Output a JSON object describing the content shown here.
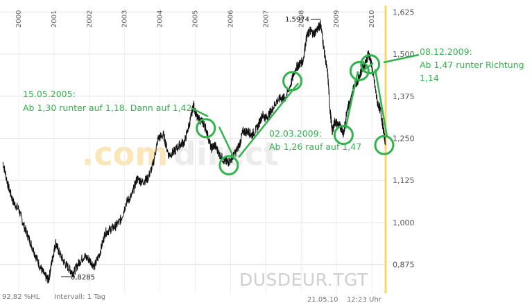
{
  "chart_data": {
    "type": "line",
    "ticker": "DUSDEUR.TGT",
    "watermark": [
      ".com",
      "direct"
    ],
    "ylim": [
      0.79,
      1.64
    ],
    "y_ticks": [
      {
        "value": 0.875,
        "label": "0,875"
      },
      {
        "value": 1.0,
        "label": "1,000"
      },
      {
        "value": 1.125,
        "label": "1,125"
      },
      {
        "value": 1.25,
        "label": "1,250"
      },
      {
        "value": 1.375,
        "label": "1,375"
      },
      {
        "value": 1.5,
        "label": "1,500"
      },
      {
        "value": 1.625,
        "label": "1,625"
      }
    ],
    "xlim": [
      1999.55,
      2010.39
    ],
    "x_ticks": [
      {
        "value": 2000,
        "label": "2000"
      },
      {
        "value": 2001,
        "label": "2001"
      },
      {
        "value": 2002,
        "label": "2002"
      },
      {
        "value": 2003,
        "label": "2003"
      },
      {
        "value": 2004,
        "label": "2004"
      },
      {
        "value": 2005,
        "label": "2005"
      },
      {
        "value": 2006,
        "label": "2006"
      },
      {
        "value": 2007,
        "label": "2007"
      },
      {
        "value": 2008,
        "label": "2008"
      },
      {
        "value": 2009,
        "label": "2009"
      },
      {
        "value": 2010,
        "label": "2010"
      }
    ],
    "series": [
      {
        "color": "#111111",
        "points": [
          [
            1999.55,
            1.18
          ],
          [
            1999.7,
            1.11
          ],
          [
            1999.85,
            1.06
          ],
          [
            2000.0,
            1.04
          ],
          [
            2000.15,
            0.99
          ],
          [
            2000.3,
            0.95
          ],
          [
            2000.45,
            0.91
          ],
          [
            2000.6,
            0.87
          ],
          [
            2000.75,
            0.84
          ],
          [
            2000.85,
            0.83
          ],
          [
            2000.95,
            0.89
          ],
          [
            2001.05,
            0.94
          ],
          [
            2001.15,
            0.91
          ],
          [
            2001.3,
            0.88
          ],
          [
            2001.45,
            0.86
          ],
          [
            2001.55,
            0.85
          ],
          [
            2001.7,
            0.88
          ],
          [
            2001.85,
            0.9
          ],
          [
            2002.0,
            0.89
          ],
          [
            2002.15,
            0.87
          ],
          [
            2002.3,
            0.91
          ],
          [
            2002.45,
            0.97
          ],
          [
            2002.6,
            0.98
          ],
          [
            2002.75,
            0.99
          ],
          [
            2002.9,
            1.01
          ],
          [
            2003.05,
            1.06
          ],
          [
            2003.2,
            1.08
          ],
          [
            2003.35,
            1.13
          ],
          [
            2003.5,
            1.12
          ],
          [
            2003.65,
            1.13
          ],
          [
            2003.8,
            1.17
          ],
          [
            2003.95,
            1.25
          ],
          [
            2004.1,
            1.26
          ],
          [
            2004.25,
            1.2
          ],
          [
            2004.4,
            1.21
          ],
          [
            2004.55,
            1.23
          ],
          [
            2004.7,
            1.24
          ],
          [
            2004.85,
            1.3
          ],
          [
            2004.95,
            1.35
          ],
          [
            2005.05,
            1.31
          ],
          [
            2005.2,
            1.3
          ],
          [
            2005.3,
            1.28
          ],
          [
            2005.45,
            1.22
          ],
          [
            2005.55,
            1.23
          ],
          [
            2005.7,
            1.2
          ],
          [
            2005.85,
            1.18
          ],
          [
            2005.95,
            1.18
          ],
          [
            2006.1,
            1.2
          ],
          [
            2006.25,
            1.23
          ],
          [
            2006.35,
            1.27
          ],
          [
            2006.5,
            1.27
          ],
          [
            2006.6,
            1.26
          ],
          [
            2006.75,
            1.28
          ],
          [
            2006.9,
            1.32
          ],
          [
            2007.0,
            1.31
          ],
          [
            2007.15,
            1.33
          ],
          [
            2007.3,
            1.36
          ],
          [
            2007.45,
            1.37
          ],
          [
            2007.55,
            1.37
          ],
          [
            2007.7,
            1.41
          ],
          [
            2007.85,
            1.46
          ],
          [
            2007.95,
            1.47
          ],
          [
            2008.05,
            1.48
          ],
          [
            2008.15,
            1.55
          ],
          [
            2008.25,
            1.57
          ],
          [
            2008.35,
            1.56
          ],
          [
            2008.5,
            1.58
          ],
          [
            2008.55,
            1.59
          ],
          [
            2008.65,
            1.51
          ],
          [
            2008.75,
            1.44
          ],
          [
            2008.82,
            1.33
          ],
          [
            2008.88,
            1.27
          ],
          [
            2008.95,
            1.3
          ],
          [
            2009.05,
            1.29
          ],
          [
            2009.15,
            1.28
          ],
          [
            2009.2,
            1.26
          ],
          [
            2009.3,
            1.34
          ],
          [
            2009.4,
            1.36
          ],
          [
            2009.5,
            1.41
          ],
          [
            2009.6,
            1.42
          ],
          [
            2009.7,
            1.45
          ],
          [
            2009.8,
            1.47
          ],
          [
            2009.9,
            1.5
          ],
          [
            2009.95,
            1.49
          ],
          [
            2010.05,
            1.43
          ],
          [
            2010.15,
            1.36
          ],
          [
            2010.25,
            1.33
          ],
          [
            2010.32,
            1.28
          ],
          [
            2010.38,
            1.24
          ]
        ]
      }
    ],
    "extremes": [
      {
        "x": 2008.55,
        "y": 1.5974,
        "label": "1,5974"
      },
      {
        "x": 2000.85,
        "y": 0.8285,
        "label": "0,8285"
      }
    ],
    "annotations": [
      {
        "lines": [
          "15.05.2005:",
          "Ab 1,30 runter auf 1,18. Dann auf 1,42"
        ]
      },
      {
        "lines": [
          "02.03.2009:",
          "Ab 1,26 rauf auf 1,47"
        ]
      },
      {
        "lines": [
          "08.12.2009:",
          "Ab 1,47 runter Richtung",
          "1,14"
        ]
      }
    ],
    "markers": [
      {
        "x": 2005.3,
        "y": 1.28
      },
      {
        "x": 2005.95,
        "y": 1.17
      },
      {
        "x": 2007.75,
        "y": 1.42
      },
      {
        "x": 2009.2,
        "y": 1.26
      },
      {
        "x": 2009.65,
        "y": 1.45
      },
      {
        "x": 2009.95,
        "y": 1.47
      },
      {
        "x": 2010.35,
        "y": 1.23
      }
    ],
    "grid": true,
    "accent_color": "#2fb34a",
    "current_line_color": "#f7d56a"
  },
  "footer": {
    "hl": "92,82 %HL",
    "interval": "Intervall: 1 Tag",
    "date": "21.05.10",
    "time": "12:23 Uhr"
  }
}
